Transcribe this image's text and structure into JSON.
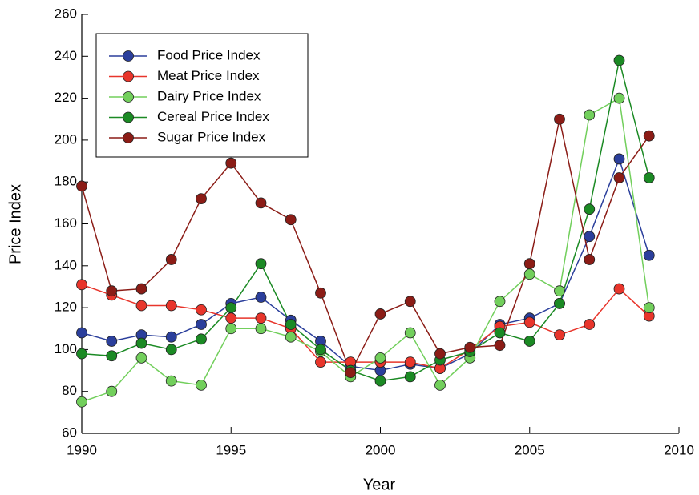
{
  "chart_data": {
    "type": "line",
    "xlabel": "Year",
    "ylabel": "Price Index",
    "x": [
      1990,
      1991,
      1992,
      1993,
      1994,
      1995,
      1996,
      1997,
      1998,
      1999,
      2000,
      2001,
      2002,
      2003,
      2004,
      2005,
      2006,
      2007,
      2008,
      2009
    ],
    "series": [
      {
        "name": "Food Price Index",
        "color": "#2b3f9c",
        "values": [
          108,
          104,
          107,
          106,
          112,
          122,
          125,
          114,
          104,
          92,
          90,
          93,
          91,
          98,
          112,
          115,
          122,
          154,
          191,
          145
        ]
      },
      {
        "name": "Meat Price Index",
        "color": "#e8352b",
        "values": [
          131,
          126,
          121,
          121,
          119,
          115,
          115,
          110,
          94,
          94,
          94,
          94,
          91,
          100,
          111,
          113,
          107,
          112,
          129,
          116
        ]
      },
      {
        "name": "Dairy Price Index",
        "color": "#72cf5c",
        "values": [
          75,
          80,
          96,
          85,
          83,
          110,
          110,
          106,
          99,
          87,
          96,
          108,
          83,
          96,
          123,
          136,
          128,
          212,
          220,
          120
        ]
      },
      {
        "name": "Cereal Price Index",
        "color": "#1b8a24",
        "values": [
          98,
          97,
          103,
          100,
          105,
          120,
          141,
          112,
          100,
          90,
          85,
          87,
          95,
          99,
          108,
          104,
          122,
          167,
          238,
          182
        ]
      },
      {
        "name": "Sugar Price Index",
        "color": "#8b1c16",
        "values": [
          178,
          128,
          129,
          143,
          172,
          189,
          170,
          162,
          127,
          89,
          117,
          123,
          98,
          101,
          102,
          141,
          210,
          143,
          182,
          202
        ]
      }
    ],
    "xlim": [
      1990,
      2010
    ],
    "xticks": [
      1990,
      1995,
      2000,
      2005,
      2010
    ],
    "ylim": [
      60,
      260
    ],
    "yticks": [
      60,
      80,
      100,
      120,
      140,
      160,
      180,
      200,
      220,
      240,
      260
    ],
    "legend": "upper left"
  }
}
